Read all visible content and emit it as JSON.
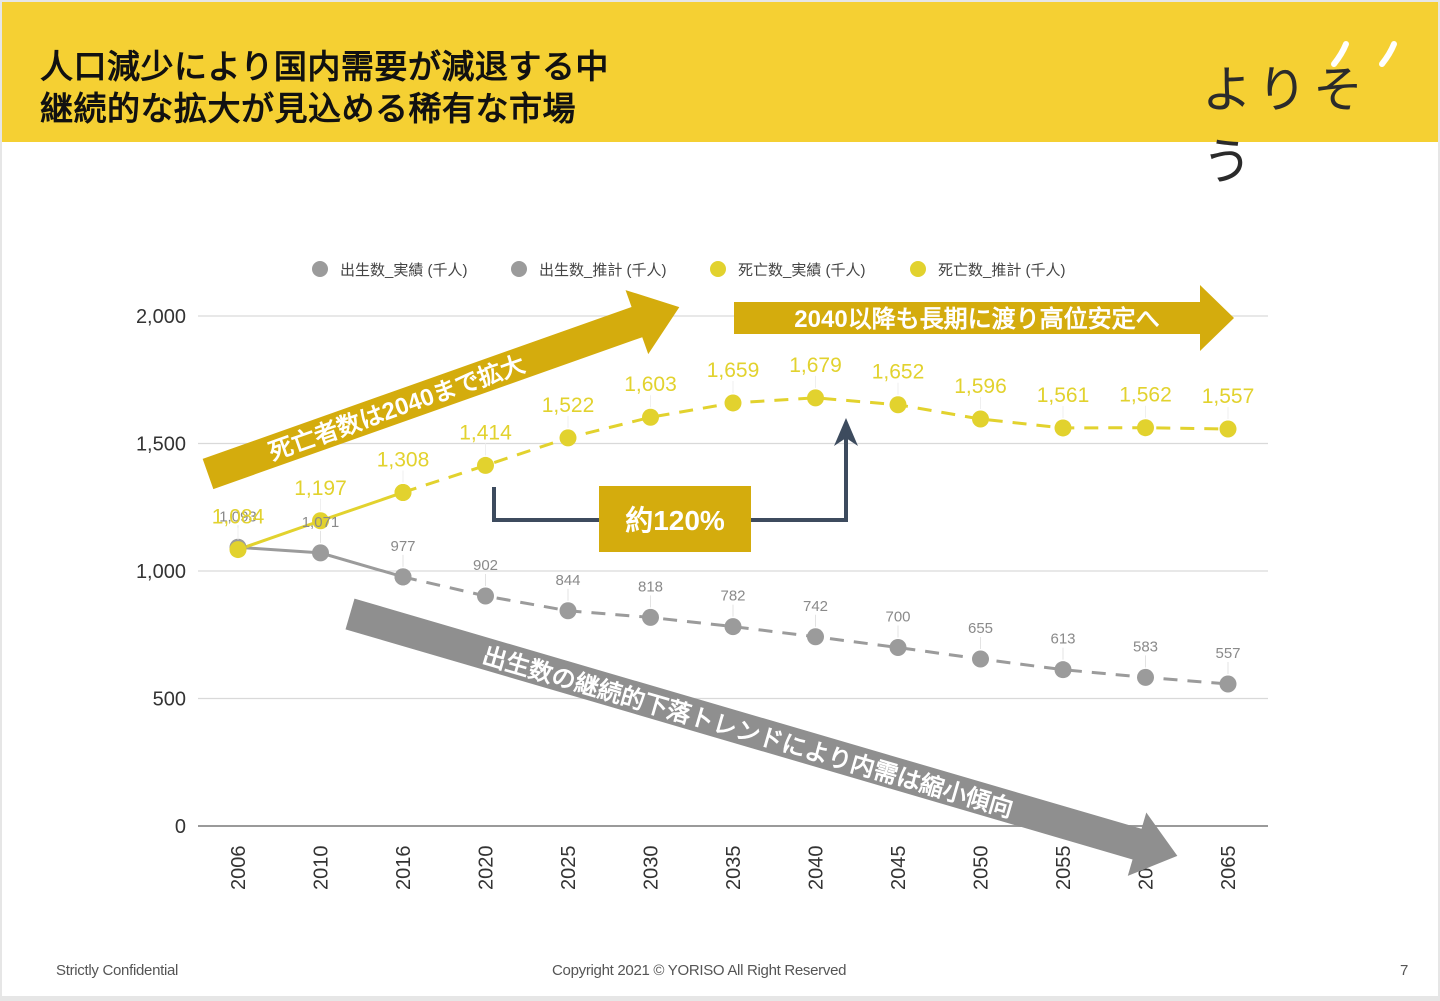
{
  "header": {
    "title_line1": "人口減少により国内需要が減退する中",
    "title_line2": "継続的な拡大が見込める稀有な市場",
    "logo_text": "よりそう"
  },
  "colors": {
    "header_bg": "#f5d033",
    "births": "#9b9b9b",
    "deaths": "#e2d22e",
    "annotation_gold": "#d4ac0d",
    "annotation_gray": "#8f8f8f",
    "bracket": "#3d4b5e"
  },
  "annotations": {
    "deaths_rise": "死亡者数は2040まで拡大",
    "deaths_stable": "2040以降も長期に渡り高位安定へ",
    "births_decline": "出生数の継続的下落トレンドにより内需は縮小傾向",
    "growth_box": "約120%"
  },
  "chart_data": {
    "type": "line",
    "title": "",
    "xlabel": "",
    "ylabel": "",
    "ylim": [
      0,
      2000
    ],
    "yticks": [
      0,
      500,
      1000,
      1500,
      2000
    ],
    "ytick_labels": [
      "0",
      "500",
      "1,000",
      "1,500",
      "2,000"
    ],
    "grid": true,
    "legend_position": "top",
    "categories": [
      "2006",
      "2010",
      "2016",
      "2020",
      "2025",
      "2030",
      "2035",
      "2040",
      "2045",
      "2050",
      "2055",
      "2060",
      "2065"
    ],
    "series": [
      {
        "name": "出生数_実績 (千人)",
        "color": "#9b9b9b",
        "style": "solid",
        "values": [
          1093,
          1071,
          977,
          null,
          null,
          null,
          null,
          null,
          null,
          null,
          null,
          null,
          null
        ]
      },
      {
        "name": "出生数_推計 (千人)",
        "color": "#9b9b9b",
        "style": "dashed",
        "values": [
          null,
          null,
          977,
          902,
          844,
          818,
          782,
          742,
          700,
          655,
          613,
          583,
          557
        ]
      },
      {
        "name": "死亡数_実績 (千人)",
        "color": "#e2d22e",
        "style": "solid",
        "values": [
          1084,
          1197,
          1308,
          null,
          null,
          null,
          null,
          null,
          null,
          null,
          null,
          null,
          null
        ]
      },
      {
        "name": "死亡数_推計 (千人)",
        "color": "#e2d22e",
        "style": "dashed",
        "values": [
          null,
          null,
          1308,
          1414,
          1522,
          1603,
          1659,
          1679,
          1652,
          1596,
          1561,
          1562,
          1557
        ]
      }
    ],
    "point_labels": {
      "births": [
        "1,093",
        "1,071",
        "977",
        "902",
        "844",
        "818",
        "782",
        "742",
        "700",
        "655",
        "613",
        "583",
        "557"
      ],
      "deaths": [
        "1,084",
        "1,197",
        "1,308",
        "1,414",
        "1,522",
        "1,603",
        "1,659",
        "1,679",
        "1,652",
        "1,596",
        "1,561",
        "1,562",
        "1,557"
      ]
    }
  },
  "footer": {
    "left": "Strictly Confidential",
    "center": "Copyright 2021 © YORISO All Right Reserved",
    "page_number": "7"
  }
}
